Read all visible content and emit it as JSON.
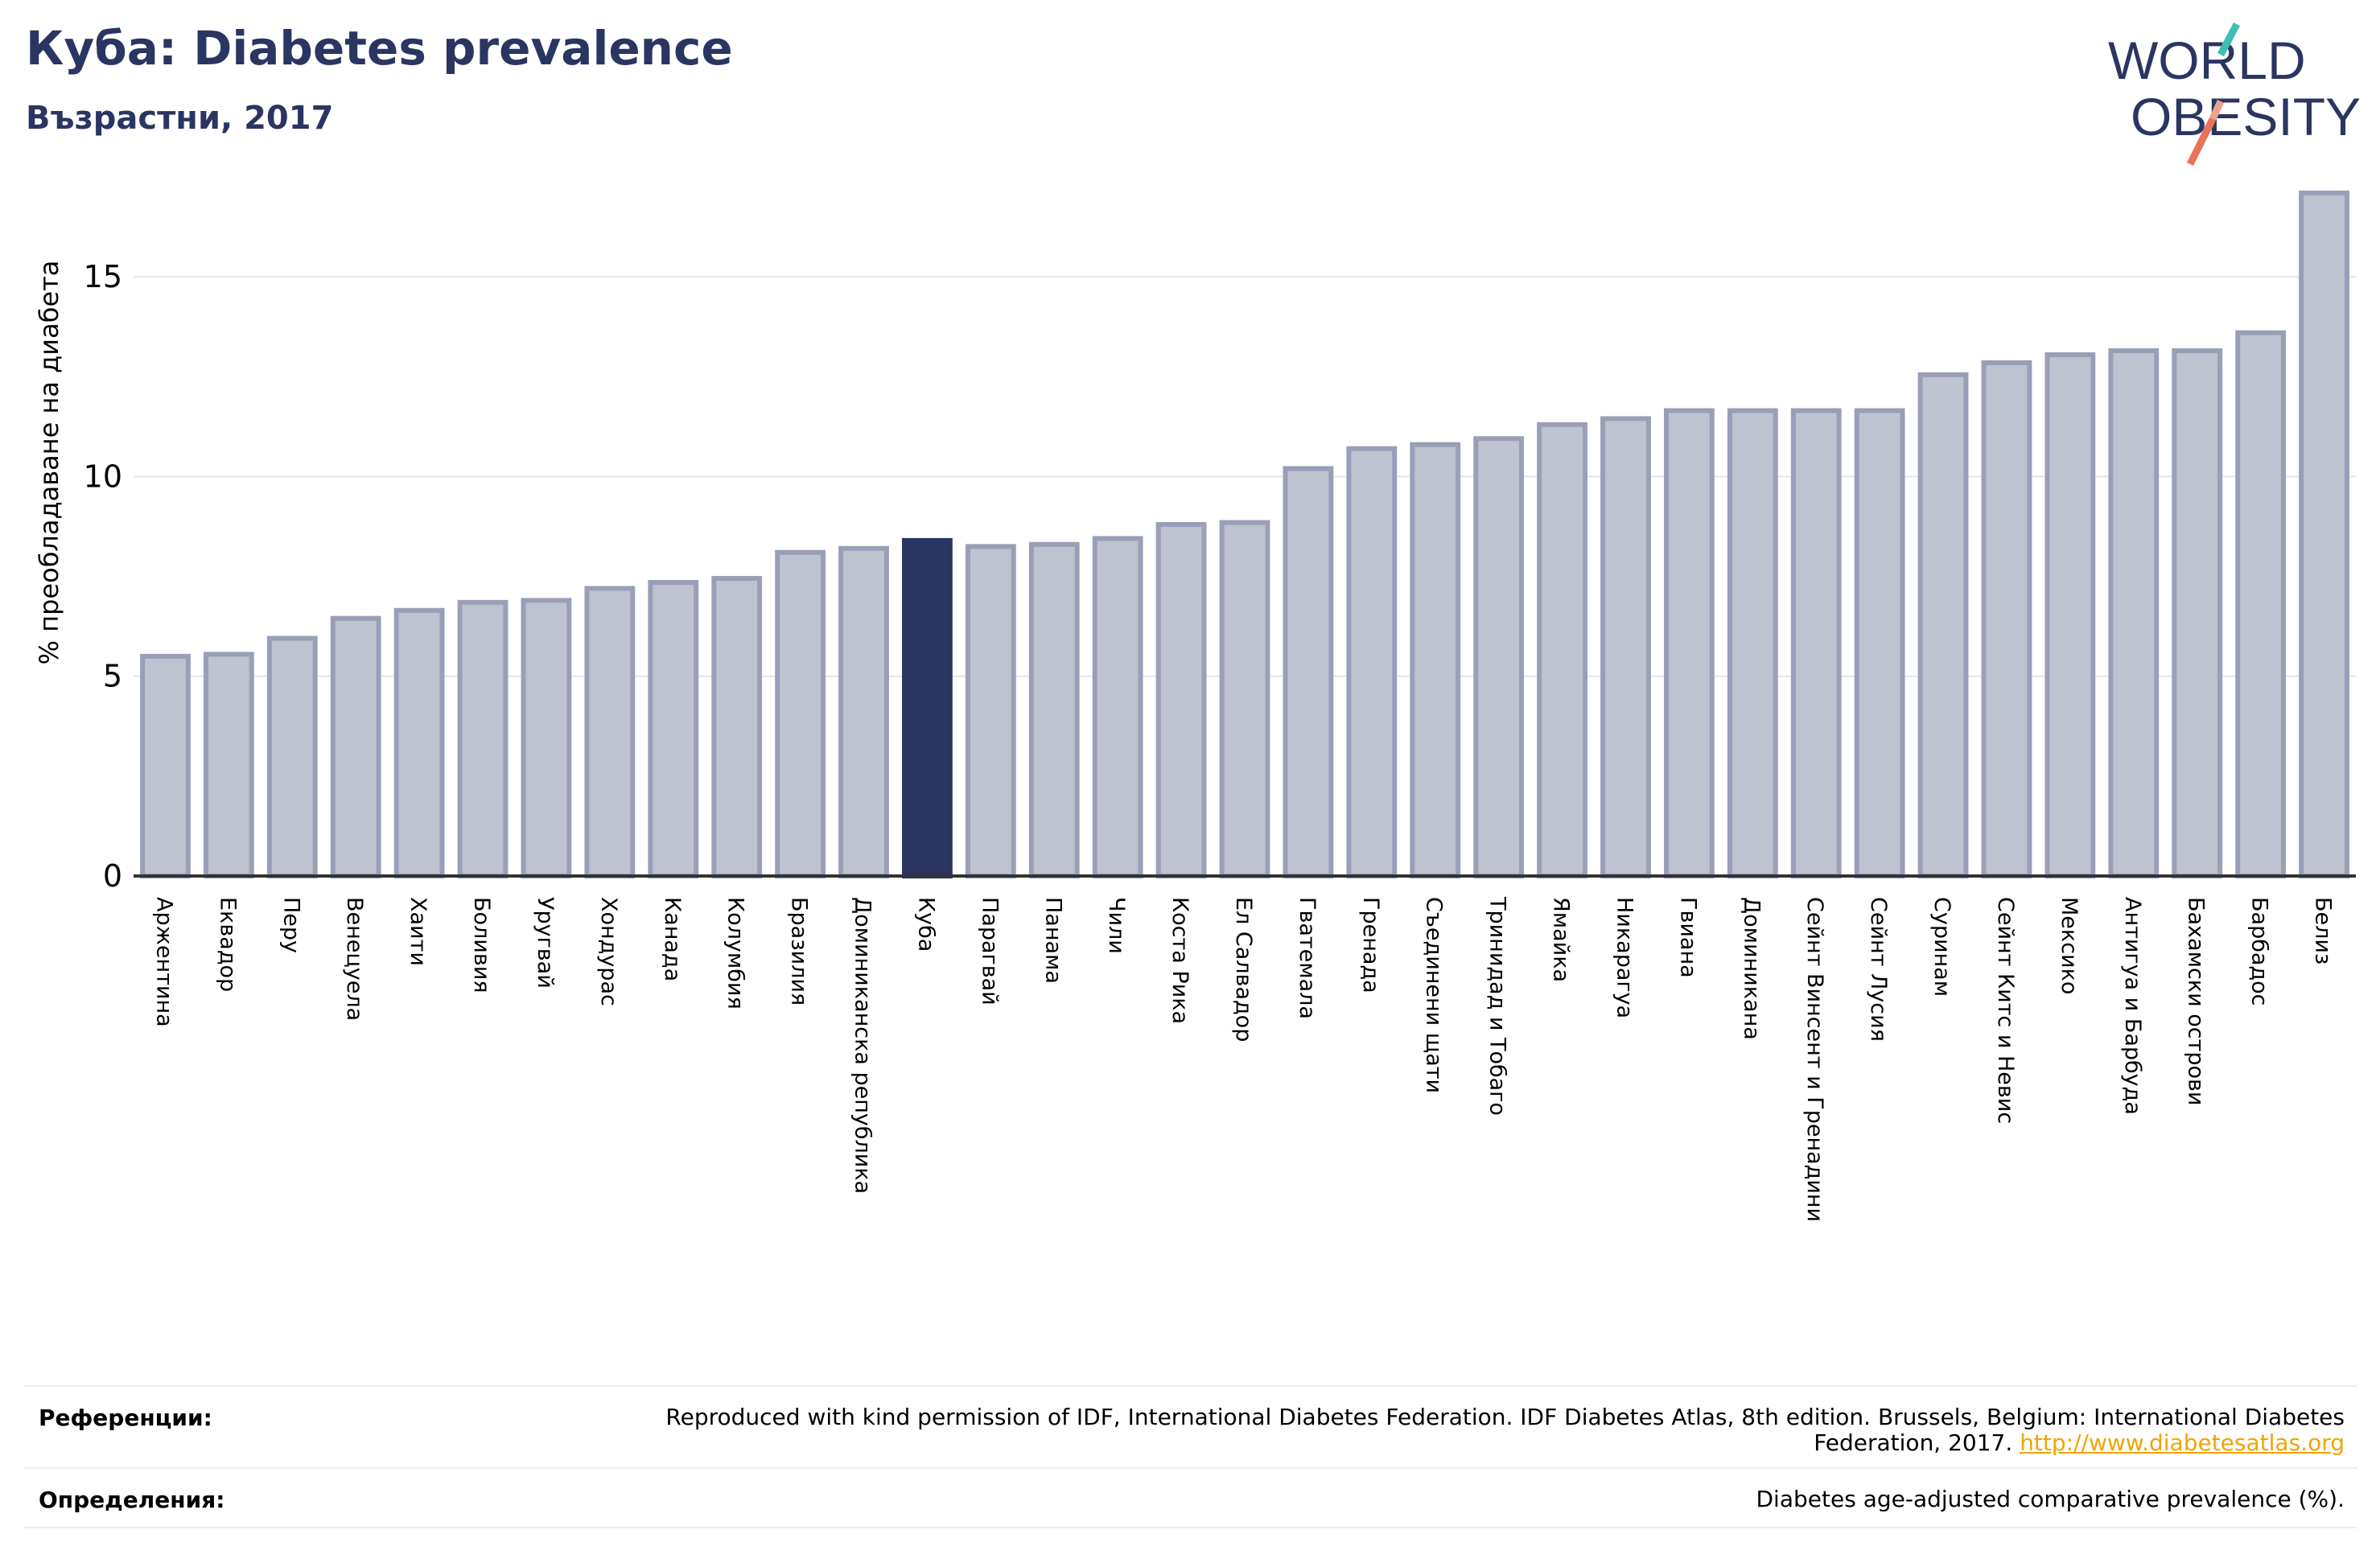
{
  "header": {
    "title": "Куба: Diabetes prevalence",
    "subtitle": "Възрастни, 2017"
  },
  "logo": {
    "line1": "WORLD",
    "line2": "OBESITY"
  },
  "chart_data": {
    "type": "bar",
    "ylabel": "% преобладаване на диабета",
    "ylim": [
      0,
      17.5
    ],
    "yticks": [
      0,
      5,
      10,
      15
    ],
    "grid": true,
    "highlight_category": "Куба",
    "colors": {
      "bar": "#bfc2cf",
      "bar_edge": "#9a9fb8",
      "highlight": "#2a3562",
      "grid": "#e6e6e6",
      "axis": "#333333"
    },
    "categories": [
      "Аржентина",
      "Еквадор",
      "Перу",
      "Венецуела",
      "Хаити",
      "Боливия",
      "Уругвай",
      "Хондурас",
      "Канада",
      "Колумбия",
      "Бразилия",
      "Доминиканска република",
      "Куба",
      "Парагвай",
      "Панама",
      "Чили",
      "Коста Рика",
      "Ел Салвадор",
      "Гватемала",
      "Гренада",
      "Съединени щати",
      "Тринидад и Тобаго",
      "Ямайка",
      "Никарагуа",
      "Гвиана",
      "Доминикана",
      "Сейнт Винсент и Гренадини",
      "Сейнт Лусия",
      "Суринам",
      "Сейнт Китс и Невис",
      "Мексико",
      "Антигуа и Барбуда",
      "Бахамски острови",
      "Барбадос",
      "Белиз"
    ],
    "values": [
      5.5,
      5.55,
      5.95,
      6.45,
      6.65,
      6.85,
      6.9,
      7.2,
      7.35,
      7.45,
      8.1,
      8.2,
      8.4,
      8.25,
      8.3,
      8.45,
      8.8,
      8.85,
      10.2,
      10.7,
      10.8,
      10.95,
      11.3,
      11.45,
      11.65,
      11.65,
      11.65,
      11.65,
      12.55,
      12.85,
      13.05,
      13.15,
      13.15,
      13.6,
      17.1
    ]
  },
  "footer": {
    "references_label": "Референции:",
    "references_text": "Reproduced with kind permission of IDF, International Diabetes Federation. IDF Diabetes Atlas, 8th edition. Brussels, Belgium: International Diabetes Federation, 2017.",
    "references_link": "http://www.diabetesatlas.org",
    "definitions_label": "Определения:",
    "definitions_text": "Diabetes age-adjusted comparative prevalence (%)."
  }
}
